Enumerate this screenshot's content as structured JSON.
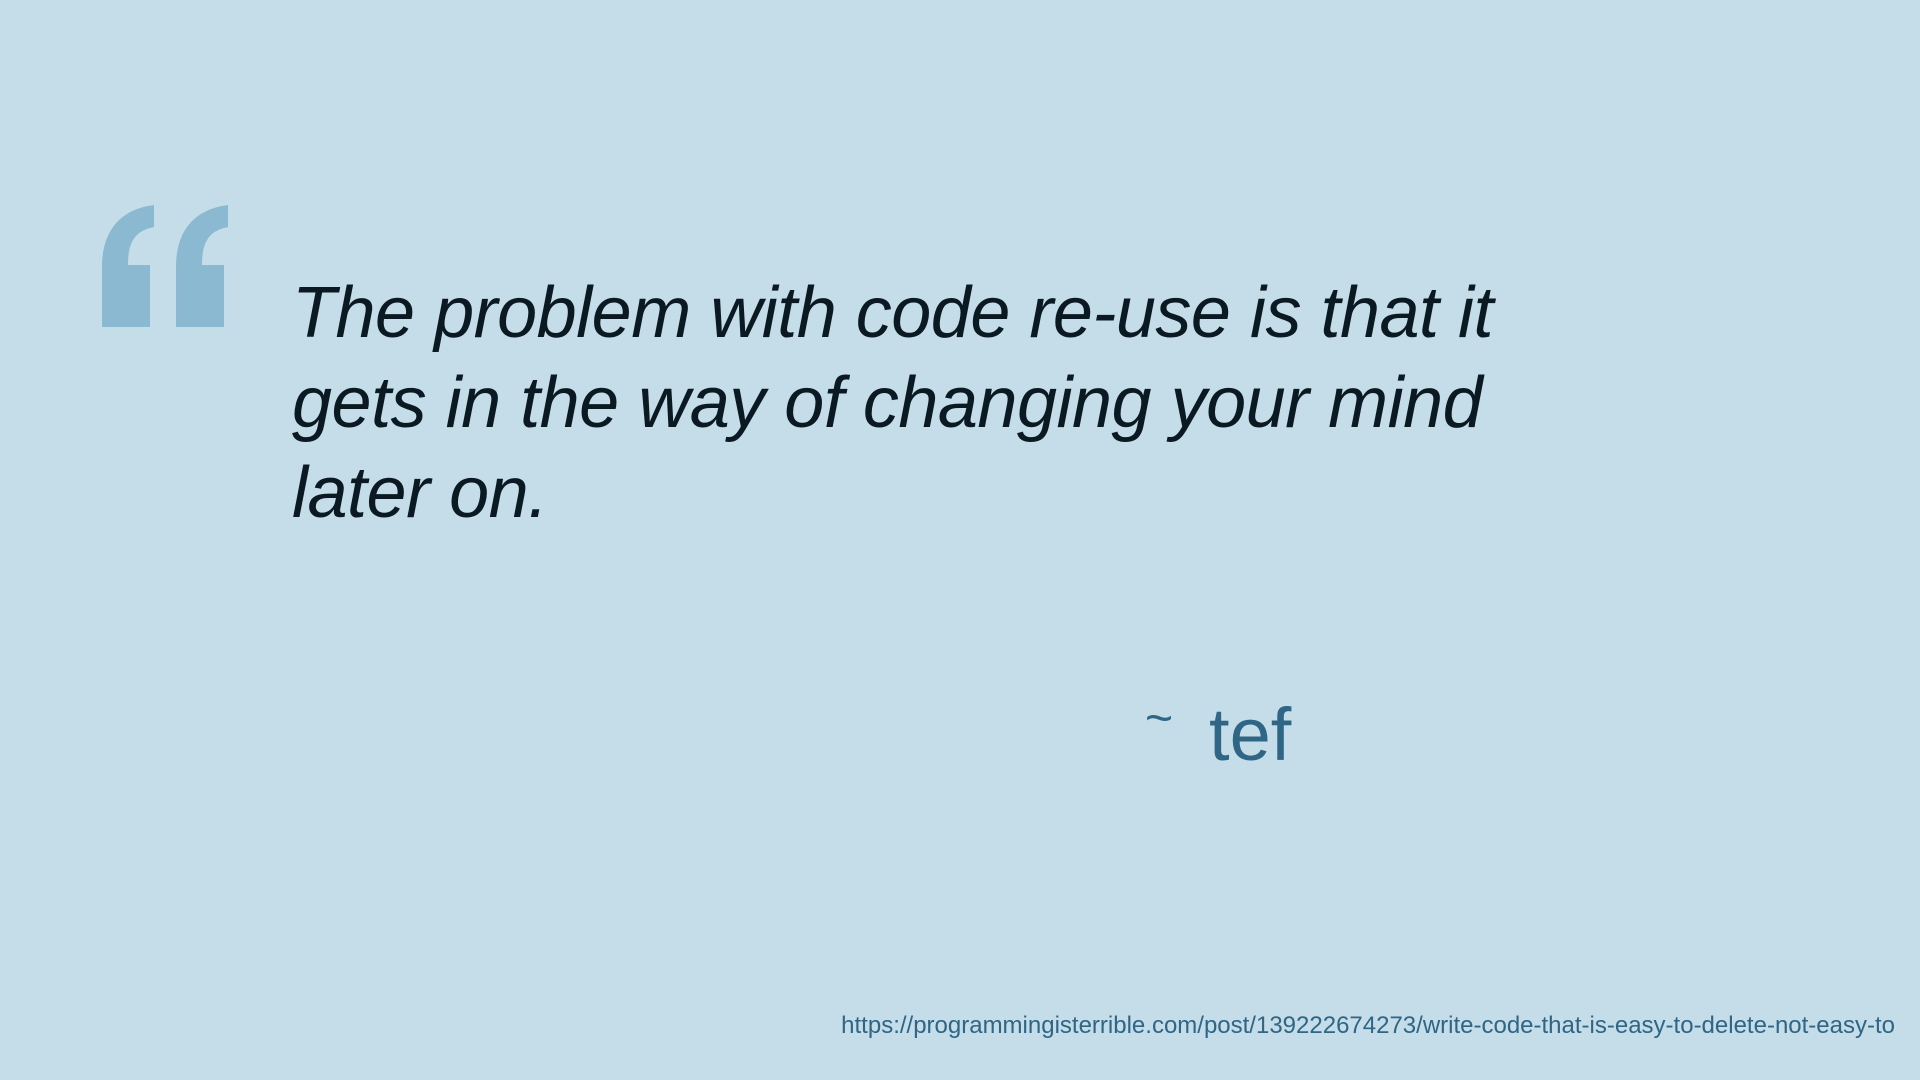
{
  "quote": {
    "text": "The problem with code re-use is that it gets in the way of changing your mind later on.",
    "mark_icon": "open-quote-icon",
    "mark_color": "#8bb9d1",
    "text_color": "#0b1a22"
  },
  "attribution": {
    "tilde": "~",
    "author": "tef",
    "color": "#2f6585"
  },
  "source": {
    "url": "https://programmingisterrible.com/post/139222674273/write-code-that-is-easy-to-delete-not-easy-to"
  },
  "background_color": "#c4dde8"
}
